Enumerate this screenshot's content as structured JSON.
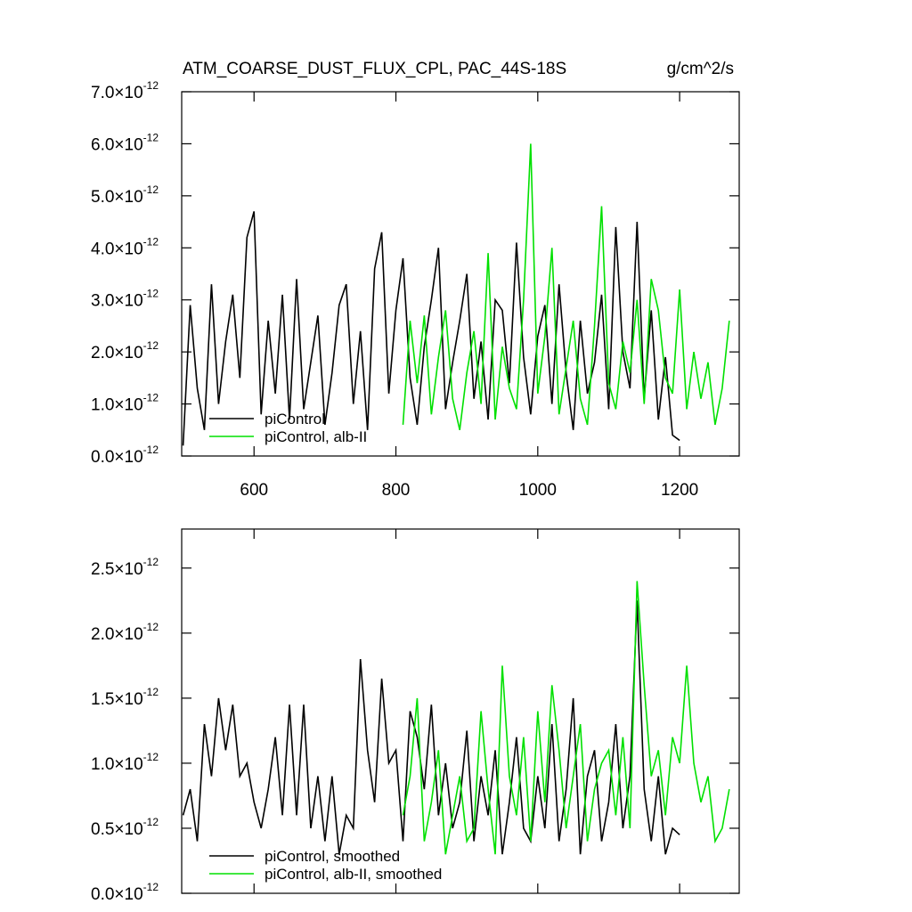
{
  "chart_data": [
    {
      "type": "line",
      "title": "ATM_COARSE_DUST_FLUX_CPL, PAC_44S-18S",
      "units": "g/cm^2/s",
      "xlim": [
        498,
        1284
      ],
      "xticks": [
        600,
        800,
        1000,
        1200
      ],
      "xtick_labels": true,
      "ylim": [
        0,
        7e-12
      ],
      "yticks": [
        {
          "value": 0,
          "label": "0.0×10",
          "exponent": "-12"
        },
        {
          "value": 1e-12,
          "label": "1.0×10",
          "exponent": "-12"
        },
        {
          "value": 2e-12,
          "label": "2.0×10",
          "exponent": "-12"
        },
        {
          "value": 3e-12,
          "label": "3.0×10",
          "exponent": "-12"
        },
        {
          "value": 4e-12,
          "label": "4.0×10",
          "exponent": "-12"
        },
        {
          "value": 5e-12,
          "label": "5.0×10",
          "exponent": "-12"
        },
        {
          "value": 6e-12,
          "label": "6.0×10",
          "exponent": "-12"
        },
        {
          "value": 7e-12,
          "label": "7.0×10",
          "exponent": "-12"
        }
      ],
      "legend": "lower left",
      "series": [
        {
          "name": "piControl",
          "color": "#000000",
          "x": [
            500,
            510,
            520,
            530,
            540,
            550,
            560,
            570,
            580,
            590,
            600,
            610,
            620,
            630,
            640,
            650,
            660,
            670,
            680,
            690,
            700,
            710,
            720,
            730,
            740,
            750,
            760,
            770,
            780,
            790,
            800,
            810,
            820,
            830,
            840,
            850,
            860,
            870,
            880,
            890,
            900,
            910,
            920,
            930,
            940,
            950,
            960,
            970,
            980,
            990,
            1000,
            1010,
            1020,
            1030,
            1040,
            1050,
            1060,
            1070,
            1080,
            1090,
            1100,
            1110,
            1120,
            1130,
            1140,
            1150,
            1160,
            1170,
            1180,
            1190,
            1200
          ],
          "values": [
            2e-13,
            2.9e-12,
            1.3e-12,
            5e-13,
            3.3e-12,
            1e-12,
            2.2e-12,
            3.1e-12,
            1.5e-12,
            4.2e-12,
            4.7e-12,
            8e-13,
            2.6e-12,
            1.2e-12,
            3.1e-12,
            7e-13,
            3.4e-12,
            9e-13,
            1.8e-12,
            2.7e-12,
            6e-13,
            1.6e-12,
            2.9e-12,
            3.3e-12,
            1e-12,
            2.4e-12,
            5e-13,
            3.6e-12,
            4.3e-12,
            1.2e-12,
            2.8e-12,
            3.8e-12,
            1.5e-12,
            6e-13,
            2.1e-12,
            3e-12,
            4e-12,
            9e-13,
            1.8e-12,
            2.6e-12,
            3.5e-12,
            1.1e-12,
            2.2e-12,
            7e-13,
            3e-12,
            2.8e-12,
            1.4e-12,
            4.1e-12,
            1.9e-12,
            8e-13,
            2.3e-12,
            2.9e-12,
            1e-12,
            3.3e-12,
            1.6e-12,
            5e-13,
            2.6e-12,
            1.2e-12,
            1.8e-12,
            3.1e-12,
            9e-13,
            4.4e-12,
            2e-12,
            1.3e-12,
            4.5e-12,
            1.1e-12,
            2.8e-12,
            7e-13,
            1.9e-12,
            4e-13,
            3e-13
          ]
        },
        {
          "name": "piControl, alb-II",
          "color": "#00e000",
          "x": [
            810,
            820,
            830,
            840,
            850,
            860,
            870,
            880,
            890,
            900,
            910,
            920,
            930,
            940,
            950,
            960,
            970,
            980,
            990,
            1000,
            1010,
            1020,
            1030,
            1040,
            1050,
            1060,
            1070,
            1080,
            1090,
            1100,
            1110,
            1120,
            1130,
            1140,
            1150,
            1160,
            1170,
            1180,
            1190,
            1200,
            1210,
            1220,
            1230,
            1240,
            1250,
            1260,
            1270
          ],
          "values": [
            6e-13,
            2.6e-12,
            1.4e-12,
            2.7e-12,
            8e-13,
            1.9e-12,
            2.8e-12,
            1.1e-12,
            5e-13,
            1.6e-12,
            2.4e-12,
            1e-12,
            3.9e-12,
            7e-13,
            2.1e-12,
            1.3e-12,
            9e-13,
            3e-12,
            6e-12,
            1.2e-12,
            2.3e-12,
            4e-12,
            8e-13,
            1.7e-12,
            2.6e-12,
            1.1e-12,
            6e-13,
            2.5e-12,
            4.8e-12,
            1.4e-12,
            9e-13,
            2.2e-12,
            1.6e-12,
            3e-12,
            1e-12,
            3.4e-12,
            2.8e-12,
            1.5e-12,
            1.2e-12,
            3.2e-12,
            9e-13,
            2e-12,
            1.1e-12,
            1.8e-12,
            6e-13,
            1.3e-12,
            2.6e-12
          ]
        }
      ]
    },
    {
      "type": "line",
      "xlim": [
        498,
        1284
      ],
      "xticks": [
        600,
        800,
        1000,
        1200
      ],
      "xtick_labels": false,
      "ylim": [
        0,
        2.8e-12
      ],
      "yticks": [
        {
          "value": 0,
          "label": "0.0×10",
          "exponent": "-12"
        },
        {
          "value": 5e-13,
          "label": "0.5×10",
          "exponent": "-12"
        },
        {
          "value": 1e-12,
          "label": "1.0×10",
          "exponent": "-12"
        },
        {
          "value": 1.5e-12,
          "label": "1.5×10",
          "exponent": "-12"
        },
        {
          "value": 2e-12,
          "label": "2.0×10",
          "exponent": "-12"
        },
        {
          "value": 2.5e-12,
          "label": "2.5×10",
          "exponent": "-12"
        }
      ],
      "legend": "lower left",
      "series": [
        {
          "name": "piControl, smoothed",
          "color": "#000000",
          "x": [
            500,
            510,
            520,
            530,
            540,
            550,
            560,
            570,
            580,
            590,
            600,
            610,
            620,
            630,
            640,
            650,
            660,
            670,
            680,
            690,
            700,
            710,
            720,
            730,
            740,
            750,
            760,
            770,
            780,
            790,
            800,
            810,
            820,
            830,
            840,
            850,
            860,
            870,
            880,
            890,
            900,
            910,
            920,
            930,
            940,
            950,
            960,
            970,
            980,
            990,
            1000,
            1010,
            1020,
            1030,
            1040,
            1050,
            1060,
            1070,
            1080,
            1090,
            1100,
            1110,
            1120,
            1130,
            1140,
            1150,
            1160,
            1170,
            1180,
            1190,
            1200
          ],
          "values": [
            6e-13,
            8e-13,
            4e-13,
            1.3e-12,
            9e-13,
            1.5e-12,
            1.1e-12,
            1.45e-12,
            9e-13,
            1e-12,
            7e-13,
            5e-13,
            8e-13,
            1.2e-12,
            6e-13,
            1.45e-12,
            6e-13,
            1.45e-12,
            5e-13,
            9e-13,
            4e-13,
            9e-13,
            3e-13,
            6e-13,
            5e-13,
            1.8e-12,
            1.1e-12,
            7e-13,
            1.65e-12,
            1e-12,
            1.1e-12,
            4e-13,
            1.4e-12,
            1.2e-12,
            8e-13,
            1.45e-12,
            6e-13,
            1e-12,
            5e-13,
            7e-13,
            1.25e-12,
            4e-13,
            9e-13,
            6e-13,
            1.1e-12,
            3e-13,
            7e-13,
            1.2e-12,
            5e-13,
            4e-13,
            9e-13,
            5e-13,
            1.3e-12,
            4e-13,
            8e-13,
            1.5e-12,
            3e-13,
            9e-13,
            1.1e-12,
            4e-13,
            7e-13,
            1.3e-12,
            5e-13,
            9e-13,
            2.25e-12,
            8e-13,
            4e-13,
            9e-13,
            3e-13,
            5e-13,
            4.5e-13
          ]
        },
        {
          "name": "piControl, alb-II, smoothed",
          "color": "#00e000",
          "x": [
            810,
            820,
            830,
            840,
            850,
            860,
            870,
            880,
            890,
            900,
            910,
            920,
            930,
            940,
            950,
            960,
            970,
            980,
            990,
            1000,
            1010,
            1020,
            1030,
            1040,
            1050,
            1060,
            1070,
            1080,
            1090,
            1100,
            1110,
            1120,
            1130,
            1140,
            1150,
            1160,
            1170,
            1180,
            1190,
            1200,
            1210,
            1220,
            1230,
            1240,
            1250,
            1260,
            1270
          ],
          "values": [
            6e-13,
            9e-13,
            1.5e-12,
            4e-13,
            7e-13,
            1.1e-12,
            3e-13,
            6e-13,
            9e-13,
            4e-13,
            5e-13,
            1.4e-12,
            8e-13,
            3e-13,
            1.75e-12,
            9e-13,
            6e-13,
            1.2e-12,
            4e-13,
            1.4e-12,
            7e-13,
            1.6e-12,
            1.1e-12,
            5e-13,
            9e-13,
            1.3e-12,
            4e-13,
            8e-13,
            1e-12,
            1.1e-12,
            6e-13,
            1.2e-12,
            5e-13,
            2.4e-12,
            1.6e-12,
            9e-13,
            1.1e-12,
            6e-13,
            1.2e-12,
            1e-12,
            1.75e-12,
            1e-12,
            7e-13,
            9e-13,
            4e-13,
            5e-13,
            8e-13
          ]
        }
      ]
    }
  ]
}
